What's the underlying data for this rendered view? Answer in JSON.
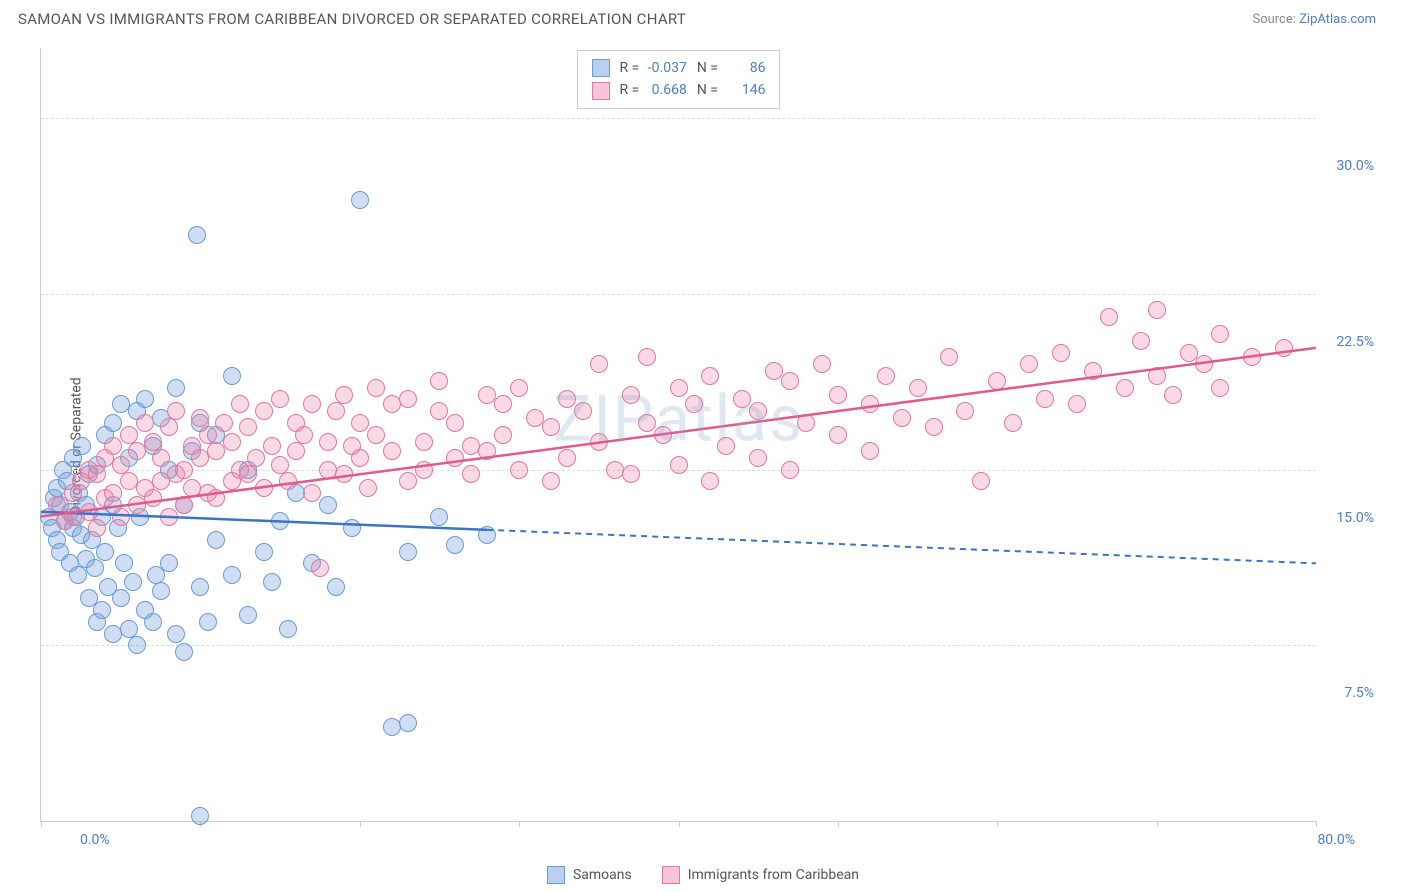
{
  "title": "SAMOAN VS IMMIGRANTS FROM CARIBBEAN DIVORCED OR SEPARATED CORRELATION CHART",
  "source_label": "Source: ",
  "source_link": "ZipAtlas.com",
  "watermark": "ZIPatlas",
  "chart": {
    "type": "scatter",
    "y_axis_title": "Divorced or Separated",
    "xlim": [
      0,
      80
    ],
    "ylim": [
      0,
      33
    ],
    "x_ticks": [
      0,
      10,
      20,
      30,
      40,
      50,
      60,
      70,
      80
    ],
    "x_tick_labels_shown": {
      "0": "0.0%",
      "80": "80.0%"
    },
    "y_ticks": [
      7.5,
      15.0,
      22.5,
      30.0
    ],
    "y_tick_labels": [
      "7.5%",
      "15.0%",
      "22.5%",
      "30.0%"
    ],
    "background_color": "#ffffff",
    "grid_color": "#dddddd",
    "axis_color": "#cccccc",
    "tick_label_color": "#4a7dd0",
    "marker_radius": 9,
    "marker_stroke_width": 1.5,
    "series": [
      {
        "name": "Samoans",
        "color_fill": "rgba(120,160,220,0.35)",
        "color_stroke": "#6a9bd8",
        "legend_swatch_fill": "#b9cfef",
        "legend_swatch_stroke": "#6a9bd8",
        "R": "-0.037",
        "N": "86",
        "trend": {
          "y_intercept_pct": 13.2,
          "y_at_xmax_pct": 11.0,
          "solid_until_x": 28,
          "stroke": "#3b73c6",
          "stroke_width": 2.5
        },
        "points": [
          [
            0.5,
            13.0
          ],
          [
            0.7,
            12.5
          ],
          [
            0.8,
            13.8
          ],
          [
            1.0,
            12.0
          ],
          [
            1.0,
            14.2
          ],
          [
            1.2,
            11.5
          ],
          [
            1.2,
            13.5
          ],
          [
            1.4,
            15.0
          ],
          [
            1.5,
            12.8
          ],
          [
            1.6,
            14.5
          ],
          [
            1.8,
            13.2
          ],
          [
            1.8,
            11.0
          ],
          [
            2.0,
            12.5
          ],
          [
            2.0,
            15.5
          ],
          [
            2.2,
            13.0
          ],
          [
            2.3,
            10.5
          ],
          [
            2.4,
            14.0
          ],
          [
            2.5,
            12.2
          ],
          [
            2.6,
            16.0
          ],
          [
            2.8,
            13.5
          ],
          [
            2.8,
            11.2
          ],
          [
            3.0,
            9.5
          ],
          [
            3.0,
            14.8
          ],
          [
            3.2,
            12.0
          ],
          [
            3.4,
            10.8
          ],
          [
            3.5,
            8.5
          ],
          [
            3.5,
            15.2
          ],
          [
            3.8,
            13.0
          ],
          [
            3.8,
            9.0
          ],
          [
            4.0,
            11.5
          ],
          [
            4.0,
            16.5
          ],
          [
            4.2,
            10.0
          ],
          [
            4.5,
            8.0
          ],
          [
            4.5,
            17.0
          ],
          [
            4.8,
            12.5
          ],
          [
            5.0,
            9.5
          ],
          [
            5.0,
            17.8
          ],
          [
            5.2,
            11.0
          ],
          [
            5.5,
            8.2
          ],
          [
            5.5,
            15.5
          ],
          [
            5.8,
            10.2
          ],
          [
            6.0,
            7.5
          ],
          [
            6.0,
            17.5
          ],
          [
            6.2,
            13.0
          ],
          [
            6.5,
            9.0
          ],
          [
            6.5,
            18.0
          ],
          [
            7.0,
            8.5
          ],
          [
            7.0,
            16.0
          ],
          [
            7.2,
            10.5
          ],
          [
            7.5,
            17.2
          ],
          [
            7.5,
            9.8
          ],
          [
            8.0,
            11.0
          ],
          [
            8.0,
            15.0
          ],
          [
            8.5,
            8.0
          ],
          [
            8.5,
            18.5
          ],
          [
            9.0,
            7.2
          ],
          [
            9.0,
            13.5
          ],
          [
            9.5,
            15.8
          ],
          [
            10.0,
            10.0
          ],
          [
            10.0,
            17.0
          ],
          [
            10.5,
            8.5
          ],
          [
            11.0,
            12.0
          ],
          [
            11.0,
            16.5
          ],
          [
            12.0,
            10.5
          ],
          [
            12.0,
            19.0
          ],
          [
            13.0,
            8.8
          ],
          [
            13.0,
            15.0
          ],
          [
            14.0,
            11.5
          ],
          [
            14.5,
            10.2
          ],
          [
            15.0,
            12.8
          ],
          [
            15.5,
            8.2
          ],
          [
            16.0,
            14.0
          ],
          [
            17.0,
            11.0
          ],
          [
            18.0,
            13.5
          ],
          [
            18.5,
            10.0
          ],
          [
            19.5,
            12.5
          ],
          [
            20.0,
            26.5
          ],
          [
            23.0,
            11.5
          ],
          [
            25.0,
            13.0
          ],
          [
            26.0,
            11.8
          ],
          [
            28.0,
            12.2
          ],
          [
            9.8,
            25.0
          ],
          [
            22.0,
            4.0
          ],
          [
            23.0,
            4.2
          ],
          [
            10.0,
            0.2
          ],
          [
            4.5,
            13.5
          ]
        ]
      },
      {
        "name": "Immigrants from Caribbean",
        "color_fill": "rgba(235,130,165,0.30)",
        "color_stroke": "#e477a0",
        "legend_swatch_fill": "#f6c5d7",
        "legend_swatch_stroke": "#e477a0",
        "R": "0.668",
        "N": "146",
        "trend": {
          "y_intercept_pct": 13.0,
          "y_at_xmax_pct": 20.2,
          "solid_until_x": 80,
          "stroke": "#e05a8a",
          "stroke_width": 2.5
        },
        "points": [
          [
            1.0,
            13.5
          ],
          [
            1.5,
            12.8
          ],
          [
            2.0,
            14.0
          ],
          [
            2.0,
            13.0
          ],
          [
            2.5,
            14.5
          ],
          [
            3.0,
            13.2
          ],
          [
            3.0,
            15.0
          ],
          [
            3.5,
            12.5
          ],
          [
            3.5,
            14.8
          ],
          [
            4.0,
            13.8
          ],
          [
            4.0,
            15.5
          ],
          [
            4.5,
            14.0
          ],
          [
            4.5,
            16.0
          ],
          [
            5.0,
            13.0
          ],
          [
            5.0,
            15.2
          ],
          [
            5.5,
            14.5
          ],
          [
            5.5,
            16.5
          ],
          [
            6.0,
            13.5
          ],
          [
            6.0,
            15.8
          ],
          [
            6.5,
            14.2
          ],
          [
            6.5,
            17.0
          ],
          [
            7.0,
            13.8
          ],
          [
            7.0,
            16.2
          ],
          [
            7.5,
            14.5
          ],
          [
            7.5,
            15.5
          ],
          [
            8.0,
            13.0
          ],
          [
            8.0,
            16.8
          ],
          [
            8.5,
            14.8
          ],
          [
            8.5,
            17.5
          ],
          [
            9.0,
            15.0
          ],
          [
            9.0,
            13.5
          ],
          [
            9.5,
            16.0
          ],
          [
            9.5,
            14.2
          ],
          [
            10.0,
            15.5
          ],
          [
            10.0,
            17.2
          ],
          [
            10.5,
            14.0
          ],
          [
            10.5,
            16.5
          ],
          [
            11.0,
            15.8
          ],
          [
            11.0,
            13.8
          ],
          [
            11.5,
            17.0
          ],
          [
            12.0,
            14.5
          ],
          [
            12.0,
            16.2
          ],
          [
            12.5,
            15.0
          ],
          [
            12.5,
            17.8
          ],
          [
            13.0,
            14.8
          ],
          [
            13.0,
            16.8
          ],
          [
            13.5,
            15.5
          ],
          [
            14.0,
            17.5
          ],
          [
            14.0,
            14.2
          ],
          [
            14.5,
            16.0
          ],
          [
            15.0,
            15.2
          ],
          [
            15.0,
            18.0
          ],
          [
            15.5,
            14.5
          ],
          [
            16.0,
            17.0
          ],
          [
            16.0,
            15.8
          ],
          [
            16.5,
            16.5
          ],
          [
            17.0,
            14.0
          ],
          [
            17.0,
            17.8
          ],
          [
            17.5,
            10.8
          ],
          [
            18.0,
            16.2
          ],
          [
            18.0,
            15.0
          ],
          [
            18.5,
            17.5
          ],
          [
            19.0,
            14.8
          ],
          [
            19.0,
            18.2
          ],
          [
            19.5,
            16.0
          ],
          [
            20.0,
            15.5
          ],
          [
            20.0,
            17.0
          ],
          [
            20.5,
            14.2
          ],
          [
            21.0,
            18.5
          ],
          [
            21.0,
            16.5
          ],
          [
            22.0,
            15.8
          ],
          [
            22.0,
            17.8
          ],
          [
            23.0,
            14.5
          ],
          [
            23.0,
            18.0
          ],
          [
            24.0,
            16.2
          ],
          [
            24.0,
            15.0
          ],
          [
            25.0,
            17.5
          ],
          [
            25.0,
            18.8
          ],
          [
            26.0,
            15.5
          ],
          [
            26.0,
            17.0
          ],
          [
            27.0,
            16.0
          ],
          [
            27.0,
            14.8
          ],
          [
            28.0,
            18.2
          ],
          [
            28.0,
            15.8
          ],
          [
            29.0,
            17.8
          ],
          [
            29.0,
            16.5
          ],
          [
            30.0,
            15.0
          ],
          [
            30.0,
            18.5
          ],
          [
            31.0,
            17.2
          ],
          [
            32.0,
            16.8
          ],
          [
            32.0,
            14.5
          ],
          [
            33.0,
            18.0
          ],
          [
            33.0,
            15.5
          ],
          [
            34.0,
            17.5
          ],
          [
            35.0,
            16.2
          ],
          [
            35.0,
            19.5
          ],
          [
            36.0,
            15.0
          ],
          [
            37.0,
            18.2
          ],
          [
            37.0,
            14.8
          ],
          [
            38.0,
            17.0
          ],
          [
            38.0,
            19.8
          ],
          [
            39.0,
            16.5
          ],
          [
            40.0,
            18.5
          ],
          [
            40.0,
            15.2
          ],
          [
            41.0,
            17.8
          ],
          [
            42.0,
            14.5
          ],
          [
            42.0,
            19.0
          ],
          [
            43.0,
            16.0
          ],
          [
            44.0,
            18.0
          ],
          [
            45.0,
            17.5
          ],
          [
            45.0,
            15.5
          ],
          [
            46.0,
            19.2
          ],
          [
            47.0,
            18.8
          ],
          [
            47.0,
            15.0
          ],
          [
            48.0,
            17.0
          ],
          [
            49.0,
            19.5
          ],
          [
            50.0,
            16.5
          ],
          [
            50.0,
            18.2
          ],
          [
            52.0,
            17.8
          ],
          [
            52.0,
            15.8
          ],
          [
            53.0,
            19.0
          ],
          [
            54.0,
            17.2
          ],
          [
            55.0,
            18.5
          ],
          [
            56.0,
            16.8
          ],
          [
            57.0,
            19.8
          ],
          [
            58.0,
            17.5
          ],
          [
            59.0,
            14.5
          ],
          [
            60.0,
            18.8
          ],
          [
            61.0,
            17.0
          ],
          [
            62.0,
            19.5
          ],
          [
            63.0,
            18.0
          ],
          [
            64.0,
            20.0
          ],
          [
            65.0,
            17.8
          ],
          [
            66.0,
            19.2
          ],
          [
            67.0,
            21.5
          ],
          [
            68.0,
            18.5
          ],
          [
            69.0,
            20.5
          ],
          [
            70.0,
            21.8
          ],
          [
            70.0,
            19.0
          ],
          [
            71.0,
            18.2
          ],
          [
            72.0,
            20.0
          ],
          [
            73.0,
            19.5
          ],
          [
            74.0,
            18.5
          ],
          [
            74.0,
            20.8
          ],
          [
            76.0,
            19.8
          ],
          [
            78.0,
            20.2
          ]
        ]
      }
    ]
  },
  "legend_bottom": [
    {
      "label": "Samoans",
      "fill": "#b9cfef",
      "stroke": "#6a9bd8"
    },
    {
      "label": "Immigrants from Caribbean",
      "fill": "#f6c5d7",
      "stroke": "#e477a0"
    }
  ]
}
